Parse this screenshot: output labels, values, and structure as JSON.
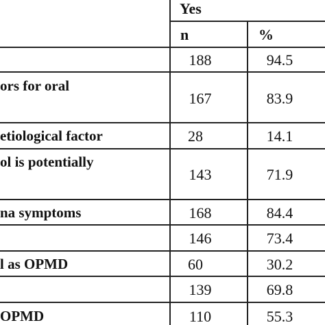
{
  "header": {
    "group_label": "Yes",
    "col_n": "n",
    "col_pct": "%"
  },
  "rows": [
    {
      "label": [
        ""
      ],
      "n": "188",
      "pct": "94.5"
    },
    {
      "label": [
        "ors for oral"
      ],
      "n": "167",
      "pct": "83.9"
    },
    {
      "label": [
        "etiological factor"
      ],
      "n": "28",
      "pct": "14.1"
    },
    {
      "label": [
        "ol is potentially"
      ],
      "n": "143",
      "pct": "71.9"
    },
    {
      "label": [
        "na symptoms"
      ],
      "n": "168",
      "pct": "84.4"
    },
    {
      "label": [
        ""
      ],
      "n": "146",
      "pct": "73.4"
    },
    {
      "label": [
        "l as OPMD"
      ],
      "n": "60",
      "pct": "30.2"
    },
    {
      "label": [
        ""
      ],
      "n": "139",
      "pct": "69.8"
    },
    {
      "label": [
        "OPMD"
      ],
      "n": "110",
      "pct": "55.3"
    }
  ]
}
